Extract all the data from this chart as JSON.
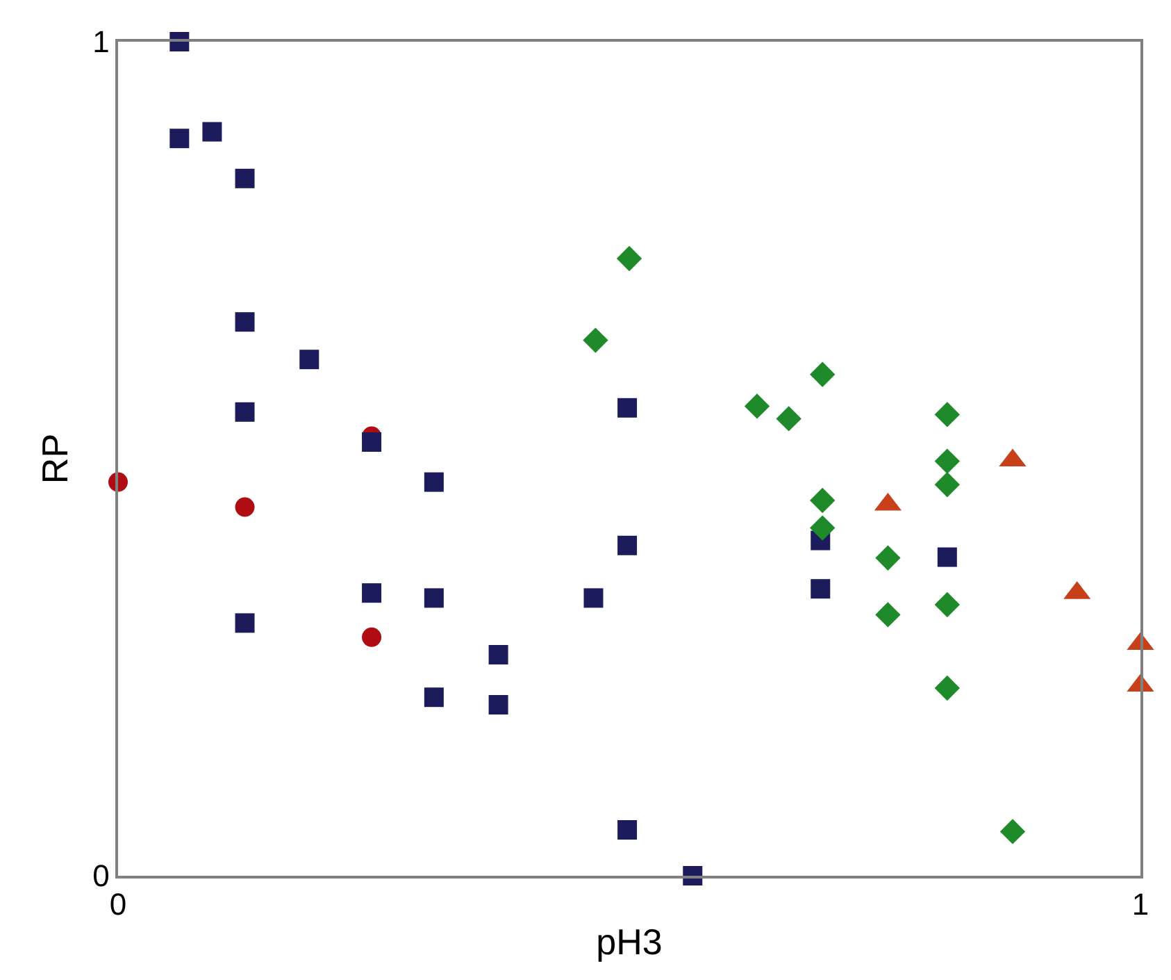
{
  "chart_data": {
    "type": "scatter",
    "xlabel": "pH3",
    "ylabel": "RP",
    "xlim": [
      0,
      1
    ],
    "ylim": [
      0,
      1
    ],
    "xticks": [
      0,
      1
    ],
    "yticks": [
      0,
      1
    ],
    "series": [
      {
        "color": "#b00c14",
        "marker": "circle",
        "x": [
          0,
          0.124,
          0.248,
          0.248
        ],
        "values": [
          0.472,
          0.442,
          0.527,
          0.286
        ]
      },
      {
        "color": "#1c1c5c",
        "marker": "square",
        "x": [
          0.06,
          0.06,
          0.092,
          0.124,
          0.124,
          0.187,
          0.124,
          0.248,
          0.309,
          0.124,
          0.248,
          0.309,
          0.372,
          0.372,
          0.309,
          0.465,
          0.498,
          0.498,
          0.498,
          0.562,
          0.687,
          0.687,
          0.811
        ],
        "values": [
          1.0,
          0.884,
          0.892,
          0.836,
          0.664,
          0.619,
          0.556,
          0.52,
          0.472,
          0.303,
          0.339,
          0.333,
          0.265,
          0.205,
          0.214,
          0.333,
          0.561,
          0.396,
          0.055,
          0.0,
          0.402,
          0.344,
          0.382
        ]
      },
      {
        "color": "#1e8a2a",
        "marker": "diamond",
        "x": [
          0.5,
          0.467,
          0.625,
          0.656,
          0.689,
          0.689,
          0.689,
          0.753,
          0.753,
          0.811,
          0.811,
          0.811,
          0.811,
          0.811,
          0.875
        ],
        "values": [
          0.74,
          0.642,
          0.563,
          0.548,
          0.601,
          0.45,
          0.417,
          0.381,
          0.313,
          0.553,
          0.497,
          0.469,
          0.325,
          0.225,
          0.053
        ]
      },
      {
        "color": "#c8401a",
        "marker": "triangle",
        "x": [
          0.753,
          0.875,
          0.938,
          1,
          1
        ],
        "values": [
          0.445,
          0.498,
          0.339,
          0.278,
          0.228
        ]
      }
    ]
  }
}
